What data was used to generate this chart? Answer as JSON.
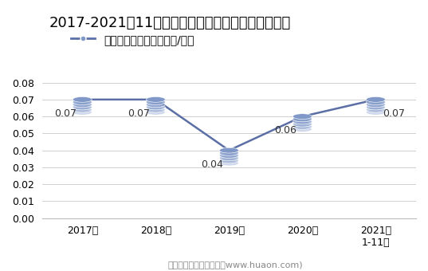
{
  "title": "2017-2021年11月大连商品交易所豆粕期权成交均价",
  "legend_label": "豆粕期权成交均价（万元/手）",
  "x_labels": [
    "2017年",
    "2018年",
    "2019年",
    "2020年",
    "2021年\n1-11月"
  ],
  "y_values": [
    0.07,
    0.07,
    0.04,
    0.06,
    0.07
  ],
  "data_labels": [
    "0.07",
    "0.07",
    "0.04",
    "0.06",
    "0.07"
  ],
  "ylim": [
    0.0,
    0.088
  ],
  "yticks": [
    0.0,
    0.01,
    0.02,
    0.03,
    0.04,
    0.05,
    0.06,
    0.07,
    0.08
  ],
  "line_color": "#5b6fa6",
  "marker_color": "#7f98c8",
  "background_color": "#ffffff",
  "footer_text": "制图：华经产业研究院（www.huaon.com)",
  "title_fontsize": 13,
  "legend_fontsize": 10,
  "tick_fontsize": 9,
  "label_fontsize": 9,
  "footer_fontsize": 8
}
